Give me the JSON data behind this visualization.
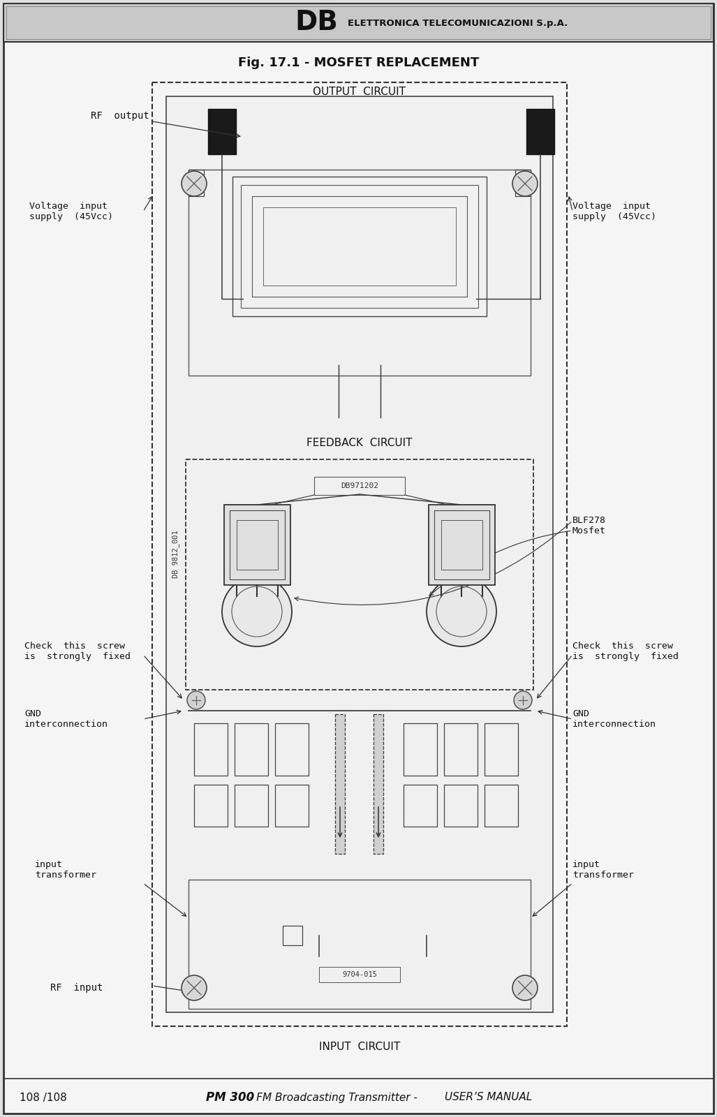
{
  "header_big": "DB",
  "header_small": "ELETTRONICA TELECOMUNICAZIONI S.p.A.",
  "title": "Fig. 17.1 - MOSFET REPLACEMENT",
  "footer_page": "108 /108",
  "footer_product": "PM 300",
  "footer_desc": " - FM Broadcasting Transmitter - ",
  "footer_manual": "USER’S MANUAL",
  "board_id": "DB 9812_001",
  "feedback_label": "FEEDBACK  CIRCUIT",
  "output_label": "OUTPUT  CIRCUIT",
  "input_label": "INPUT  CIRCUIT",
  "chip_label": "DB971202",
  "part_label": "9704-015",
  "ann_rf_output": "RF  output",
  "ann_volt_left": "Voltage  input\nsupply  (45Vcc)",
  "ann_volt_right": "Voltage  input\nsupply  (45Vcc)",
  "ann_blf": "BLF278\nMosfet",
  "ann_check_left": "Check  this  screw\nis  strongly  fixed",
  "ann_check_right": "Check  this  screw\nis  strongly  fixed",
  "ann_gnd_left": "GND\ninterconnection",
  "ann_gnd_right": "GND\ninterconnection",
  "ann_xfmr_left": "input\ntransformer",
  "ann_xfmr_right": "input\ntransformer",
  "ann_rf_input": "RF  input",
  "bg": "#e0e0e0",
  "paper": "#f5f5f5",
  "header_bg": "#c8c8c8"
}
